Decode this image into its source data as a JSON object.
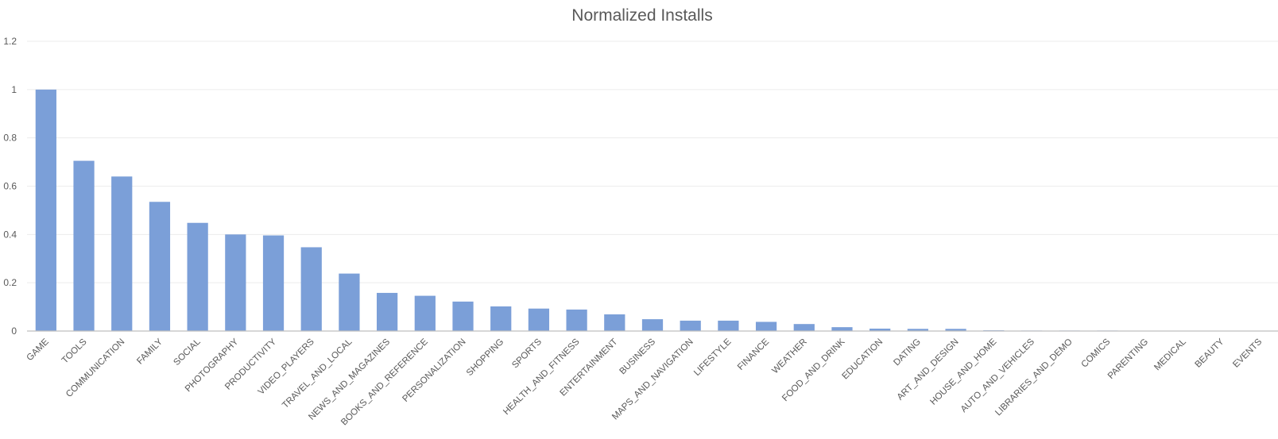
{
  "chart_data": {
    "type": "bar",
    "title": "Normalized Installs",
    "xlabel": "",
    "ylabel": "",
    "ylim": [
      0,
      1.2
    ],
    "yticks": [
      "0",
      "0.2",
      "0.4",
      "0.6",
      "0.8",
      "1",
      "1.2"
    ],
    "grid": true,
    "bar_color": "#7b9fd8",
    "categories": [
      "GAME",
      "TOOLS",
      "COMMUNICATION",
      "FAMILY",
      "SOCIAL",
      "PHOTOGRAPHY",
      "PRODUCTIVITY",
      "VIDEO_PLAYERS",
      "TRAVEL_AND_LOCAL",
      "NEWS_AND_MAGAZINES",
      "BOOKS_AND_REFERENCE",
      "PERSONALIZATION",
      "SHOPPING",
      "SPORTS",
      "HEALTH_AND_FITNESS",
      "ENTERTAINMENT",
      "BUSINESS",
      "MAPS_AND_NAVIGATION",
      "LIFESTYLE",
      "FINANCE",
      "WEATHER",
      "FOOD_AND_DRINK",
      "EDUCATION",
      "DATING",
      "ART_AND_DESIGN",
      "HOUSE_AND_HOME",
      "AUTO_AND_VEHICLES",
      "LIBRARIES_AND_DEMO",
      "COMICS",
      "PARENTING",
      "MEDICAL",
      "BEAUTY",
      "EVENTS"
    ],
    "values": [
      1.0,
      0.705,
      0.64,
      0.535,
      0.448,
      0.4,
      0.396,
      0.347,
      0.238,
      0.158,
      0.146,
      0.122,
      0.102,
      0.093,
      0.089,
      0.069,
      0.049,
      0.043,
      0.043,
      0.038,
      0.029,
      0.016,
      0.01,
      0.009,
      0.009,
      0.003,
      0.002,
      0.002,
      0.002,
      0.001,
      0.001,
      0.001,
      0.001
    ]
  }
}
